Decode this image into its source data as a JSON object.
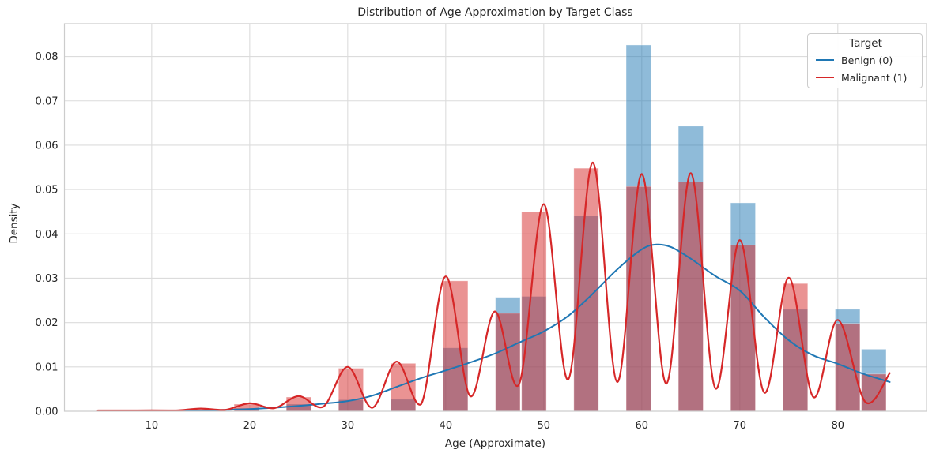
{
  "figure": {
    "title": "Distribution of Age Approximation by Target Class",
    "xlabel": "Age (Approximate)",
    "ylabel": "Density"
  },
  "legend": {
    "title": "Target",
    "position": "upper right",
    "items": [
      {
        "label": "Benign (0)",
        "color": "#1f77b4"
      },
      {
        "label": "Malignant (1)",
        "color": "#d62728"
      }
    ]
  },
  "chart_data": {
    "type": "bar",
    "subtype": "overlaid-density-histogram-with-kde",
    "title": "Distribution of Age Approximation by Target Class",
    "xlabel": "Age (Approximate)",
    "ylabel": "Density",
    "xlim": [
      1.1,
      89.05
    ],
    "ylim": [
      0,
      0.0874
    ],
    "grid": true,
    "legend_position": "upper right",
    "x_ticks": [
      {
        "value": 10,
        "label": "10"
      },
      {
        "value": 20,
        "label": "20"
      },
      {
        "value": 30,
        "label": "30"
      },
      {
        "value": 40,
        "label": "40"
      },
      {
        "value": 50,
        "label": "50"
      },
      {
        "value": 60,
        "label": "60"
      },
      {
        "value": 70,
        "label": "70"
      },
      {
        "value": 80,
        "label": "80"
      }
    ],
    "y_ticks": [
      {
        "value": 0.0,
        "label": "0.00"
      },
      {
        "value": 0.01,
        "label": "0.01"
      },
      {
        "value": 0.02,
        "label": "0.02"
      },
      {
        "value": 0.03,
        "label": "0.03"
      },
      {
        "value": 0.04,
        "label": "0.04"
      },
      {
        "value": 0.05,
        "label": "0.05"
      },
      {
        "value": 0.06,
        "label": "0.06"
      },
      {
        "value": 0.07,
        "label": "0.07"
      },
      {
        "value": 0.08,
        "label": "0.08"
      }
    ],
    "bin_width_years": 2.667,
    "bar_visual_width_years": 2.53,
    "series": [
      {
        "name": "Benign (0)",
        "color": "#1f77b4"
      },
      {
        "name": "Malignant (1)",
        "color": "#d62728"
      }
    ],
    "bars": [
      {
        "age_center": 19.67,
        "benign_density": 0.0007,
        "malignant_density": 0.0016
      },
      {
        "age_center": 25.0,
        "benign_density": 0.0016,
        "malignant_density": 0.0032
      },
      {
        "age_center": 30.33,
        "benign_density": 0.0026,
        "malignant_density": 0.0097
      },
      {
        "age_center": 35.67,
        "benign_density": 0.0027,
        "malignant_density": 0.0108
      },
      {
        "age_center": 41.0,
        "benign_density": 0.0143,
        "malignant_density": 0.0294
      },
      {
        "age_center": 46.33,
        "benign_density": 0.0257,
        "malignant_density": 0.0221
      },
      {
        "age_center": 49.0,
        "benign_density": 0.0259,
        "malignant_density": 0.045
      },
      {
        "age_center": 54.33,
        "benign_density": 0.0441,
        "malignant_density": 0.0548
      },
      {
        "age_center": 59.67,
        "benign_density": 0.0826,
        "malignant_density": 0.0507
      },
      {
        "age_center": 65.0,
        "benign_density": 0.0643,
        "malignant_density": 0.0517
      },
      {
        "age_center": 70.33,
        "benign_density": 0.047,
        "malignant_density": 0.0375
      },
      {
        "age_center": 75.67,
        "benign_density": 0.023,
        "malignant_density": 0.0288
      },
      {
        "age_center": 81.0,
        "benign_density": 0.023,
        "malignant_density": 0.0198
      },
      {
        "age_center": 83.67,
        "benign_density": 0.014,
        "malignant_density": 0.0084
      }
    ],
    "kde": {
      "benign": [
        [
          13,
          5e-05
        ],
        [
          15,
          0.0002
        ],
        [
          17.5,
          0.0003
        ],
        [
          20,
          0.0005
        ],
        [
          22.5,
          0.0008
        ],
        [
          25,
          0.0012
        ],
        [
          27.5,
          0.0017
        ],
        [
          30,
          0.0023
        ],
        [
          32.5,
          0.0035
        ],
        [
          35,
          0.0055
        ],
        [
          37.5,
          0.0075
        ],
        [
          40,
          0.0092
        ],
        [
          42.5,
          0.011
        ],
        [
          45,
          0.013
        ],
        [
          47.5,
          0.0155
        ],
        [
          50,
          0.018
        ],
        [
          52.5,
          0.0215
        ],
        [
          55,
          0.0265
        ],
        [
          57.5,
          0.032
        ],
        [
          60,
          0.0365
        ],
        [
          61.5,
          0.0376
        ],
        [
          63,
          0.037
        ],
        [
          65,
          0.0344
        ],
        [
          67.5,
          0.0305
        ],
        [
          70,
          0.0272
        ],
        [
          72.5,
          0.0212
        ],
        [
          75,
          0.016
        ],
        [
          77.5,
          0.0126
        ],
        [
          80,
          0.0107
        ],
        [
          82.5,
          0.0085
        ],
        [
          85.3,
          0.0066
        ]
      ],
      "malignant": [
        [
          4.5,
          0.0
        ],
        [
          7,
          8e-05
        ],
        [
          10,
          0.0002
        ],
        [
          12.5,
          0.00012
        ],
        [
          15,
          0.0006
        ],
        [
          17.5,
          0.0003
        ],
        [
          20,
          0.0018
        ],
        [
          22.5,
          0.0007
        ],
        [
          25,
          0.0034
        ],
        [
          27.5,
          0.001
        ],
        [
          30,
          0.01
        ],
        [
          32.5,
          0.0008
        ],
        [
          35,
          0.0112
        ],
        [
          37.5,
          0.0016
        ],
        [
          40,
          0.0304
        ],
        [
          42.5,
          0.0034
        ],
        [
          45,
          0.0225
        ],
        [
          47.5,
          0.0062
        ],
        [
          50,
          0.0467
        ],
        [
          52.5,
          0.0072
        ],
        [
          55,
          0.0561
        ],
        [
          57.5,
          0.0066
        ],
        [
          60,
          0.0535
        ],
        [
          62.5,
          0.0062
        ],
        [
          65,
          0.0537
        ],
        [
          67.5,
          0.0052
        ],
        [
          70,
          0.0386
        ],
        [
          72.5,
          0.0042
        ],
        [
          75,
          0.0301
        ],
        [
          77.5,
          0.0032
        ],
        [
          80,
          0.0206
        ],
        [
          82.8,
          0.0021
        ],
        [
          85.3,
          0.0086
        ]
      ]
    },
    "colors": {
      "benign": "#1f77b4",
      "malignant": "#d62728",
      "bar_fill_alpha": 0.5,
      "grid": "#dcdcdc",
      "spine": "#cccccc",
      "text": "#262626",
      "background": "#ffffff"
    }
  }
}
